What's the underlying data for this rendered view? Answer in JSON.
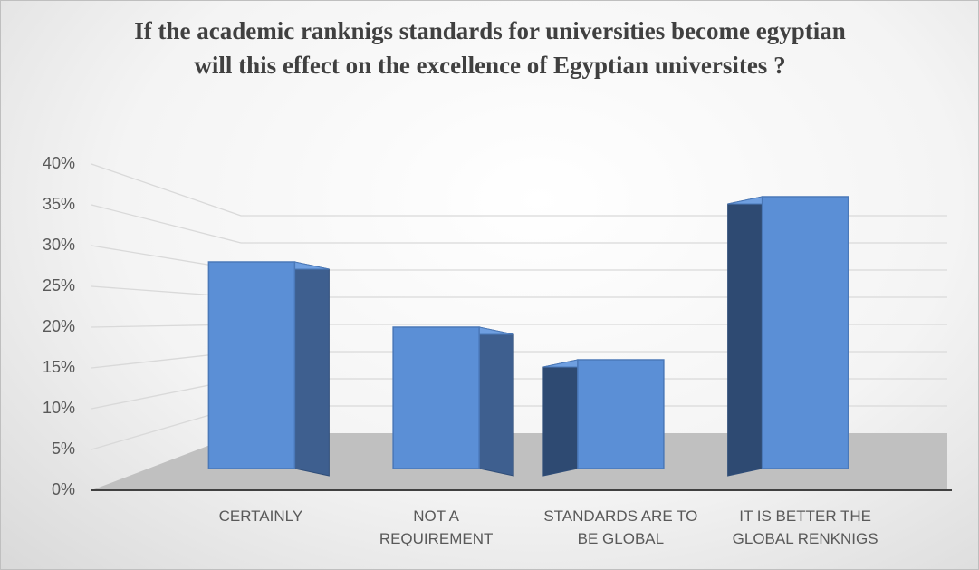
{
  "chart_data": {
    "type": "bar3d",
    "title": "If the academic ranknigs standards for  universities become egyptian will this effect on the excellence of Egyptian universites ?",
    "categories": [
      "CERTAINLY",
      "NOT A REQUIREMENT",
      "STANDARDS ARE TO BE GLOBAL",
      "IT IS BETTER THE GLOBAL RENKNIGS"
    ],
    "values": [
      28,
      20,
      16,
      36
    ],
    "color": "#5b8fd6",
    "ylim": [
      0,
      40
    ],
    "yticks": [
      {
        "value": 0,
        "label": "0%"
      },
      {
        "value": 5,
        "label": "5%"
      },
      {
        "value": 10,
        "label": "10%"
      },
      {
        "value": 15,
        "label": "15%"
      },
      {
        "value": 20,
        "label": "20%"
      },
      {
        "value": 25,
        "label": "25%"
      },
      {
        "value": 30,
        "label": "30%"
      },
      {
        "value": 35,
        "label": "35%"
      },
      {
        "value": 40,
        "label": "40%"
      }
    ],
    "grid": true
  }
}
